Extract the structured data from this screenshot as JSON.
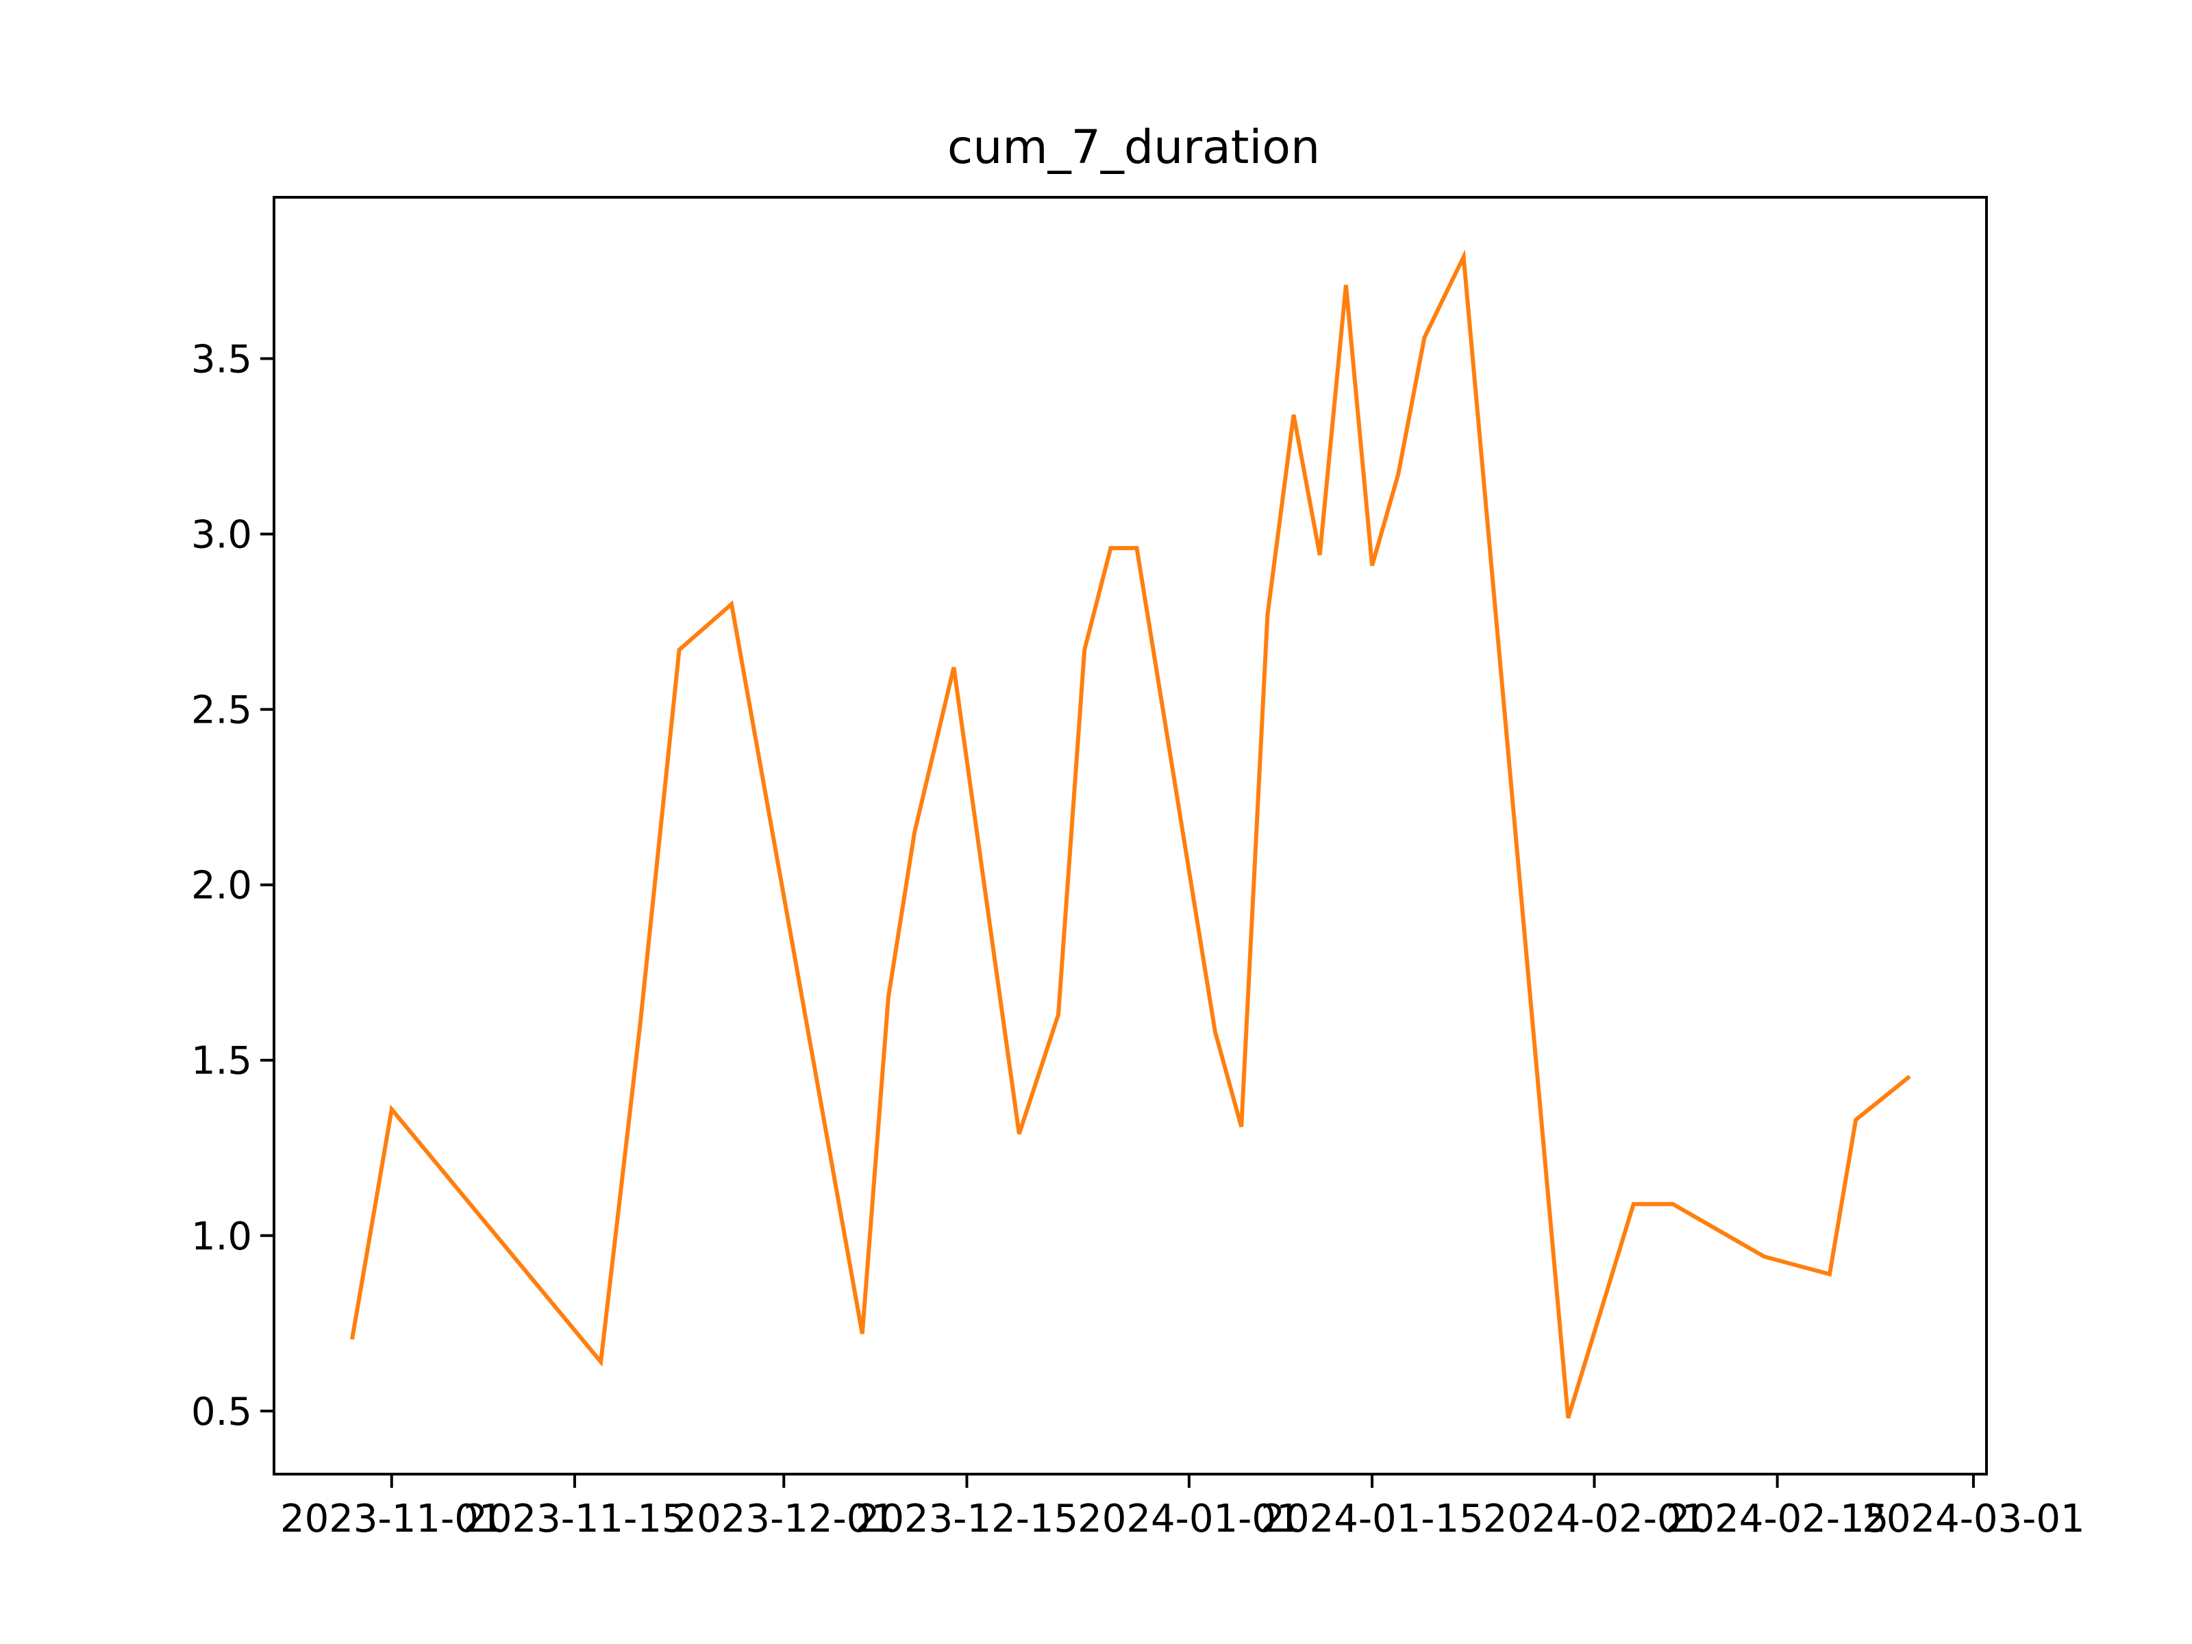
{
  "chart_data": {
    "type": "line",
    "title": "cum_7_duration",
    "xlabel": "",
    "ylabel": "",
    "x_ticks": [
      "2023-11-01",
      "2023-11-15",
      "2023-12-01",
      "2023-12-15",
      "2024-01-01",
      "2024-01-15",
      "2024-02-01",
      "2024-02-15",
      "2024-03-01"
    ],
    "y_ticks": [
      "0.5",
      "1.0",
      "1.5",
      "2.0",
      "2.5",
      "3.0",
      "3.5"
    ],
    "xlim": [
      "2023-10-23",
      "2024-03-02"
    ],
    "ylim": [
      0.32,
      3.96
    ],
    "grid": false,
    "legend": "none",
    "series": [
      {
        "color": "#ff7f0e",
        "points": [
          {
            "x": "2023-10-29",
            "y": 0.71
          },
          {
            "x": "2023-11-01",
            "y": 1.36
          },
          {
            "x": "2023-11-17",
            "y": 0.64
          },
          {
            "x": "2023-11-20",
            "y": 1.6
          },
          {
            "x": "2023-11-23",
            "y": 2.67
          },
          {
            "x": "2023-11-27",
            "y": 2.8
          },
          {
            "x": "2023-12-07",
            "y": 0.72
          },
          {
            "x": "2023-12-09",
            "y": 1.68
          },
          {
            "x": "2023-12-11",
            "y": 2.15
          },
          {
            "x": "2023-12-14",
            "y": 2.62
          },
          {
            "x": "2023-12-19",
            "y": 1.29
          },
          {
            "x": "2023-12-22",
            "y": 1.63
          },
          {
            "x": "2023-12-24",
            "y": 2.67
          },
          {
            "x": "2023-12-26",
            "y": 2.96
          },
          {
            "x": "2023-12-28",
            "y": 2.96
          },
          {
            "x": "2024-01-03",
            "y": 1.58
          },
          {
            "x": "2024-01-05",
            "y": 1.31
          },
          {
            "x": "2024-01-07",
            "y": 2.77
          },
          {
            "x": "2024-01-09",
            "y": 3.34
          },
          {
            "x": "2024-01-11",
            "y": 2.94
          },
          {
            "x": "2024-01-13",
            "y": 3.71
          },
          {
            "x": "2024-01-15",
            "y": 2.91
          },
          {
            "x": "2024-01-17",
            "y": 3.17
          },
          {
            "x": "2024-01-19",
            "y": 3.56
          },
          {
            "x": "2024-01-22",
            "y": 3.79
          },
          {
            "x": "2024-01-30",
            "y": 0.48
          },
          {
            "x": "2024-02-04",
            "y": 1.09
          },
          {
            "x": "2024-02-07",
            "y": 1.09
          },
          {
            "x": "2024-02-14",
            "y": 0.94
          },
          {
            "x": "2024-02-19",
            "y": 0.89
          },
          {
            "x": "2024-02-21",
            "y": 1.33
          },
          {
            "x": "2024-02-25",
            "y": 1.45
          }
        ]
      }
    ]
  }
}
